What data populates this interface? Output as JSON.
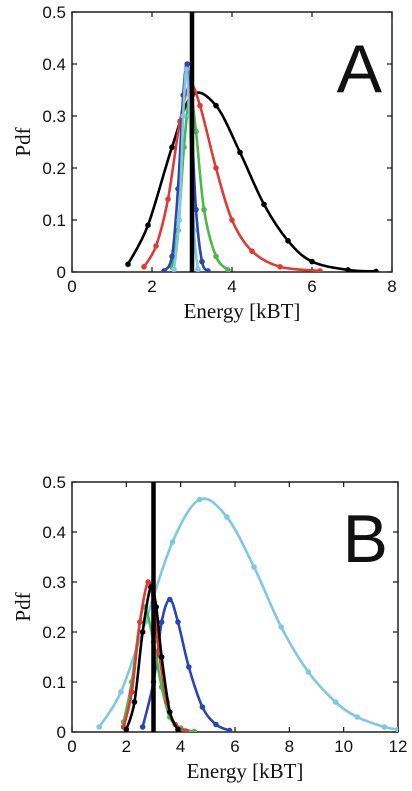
{
  "chart_data": [
    {
      "type": "line",
      "panel_label": "A",
      "xlabel": "Energy [kBT]",
      "ylabel": "Pdf",
      "xlim": [
        0,
        8
      ],
      "ylim": [
        0,
        0.5
      ],
      "xticks": [
        "0",
        "2",
        "4",
        "6",
        "8"
      ],
      "yticks": [
        "0",
        "0.1",
        "0.2",
        "0.3",
        "0.4",
        "0.5"
      ],
      "vertical_line_x": 3.0,
      "series": [
        {
          "color": "#000000",
          "x": [
            1.4,
            1.9,
            2.5,
            3.0,
            3.6,
            4.2,
            4.8,
            5.4,
            6.0,
            6.9,
            7.6
          ],
          "y": [
            0.015,
            0.09,
            0.24,
            0.34,
            0.32,
            0.23,
            0.13,
            0.06,
            0.02,
            0.004,
            0.001
          ]
        },
        {
          "color": "#e03a36",
          "x": [
            1.8,
            2.1,
            2.4,
            2.7,
            2.95,
            3.2,
            3.6,
            4.0,
            4.5,
            5.2,
            6.2
          ],
          "y": [
            0.01,
            0.05,
            0.14,
            0.29,
            0.36,
            0.32,
            0.2,
            0.1,
            0.04,
            0.01,
            0.002
          ]
        },
        {
          "color": "#4ab84a",
          "x": [
            2.5,
            2.65,
            2.8,
            2.95,
            3.1,
            3.3,
            3.6,
            3.9
          ],
          "y": [
            0.01,
            0.08,
            0.24,
            0.34,
            0.27,
            0.12,
            0.03,
            0.004
          ]
        },
        {
          "color": "#2a45b0",
          "x": [
            2.3,
            2.5,
            2.65,
            2.78,
            2.88,
            2.98,
            3.1,
            3.25,
            3.4
          ],
          "y": [
            0.002,
            0.03,
            0.16,
            0.34,
            0.4,
            0.3,
            0.12,
            0.02,
            0.002
          ]
        },
        {
          "color": "#7ec8e3",
          "x": [
            2.55,
            2.68,
            2.78,
            2.86,
            2.94,
            3.05,
            3.15
          ],
          "y": [
            0.005,
            0.1,
            0.3,
            0.39,
            0.3,
            0.08,
            0.005
          ]
        }
      ]
    },
    {
      "type": "line",
      "panel_label": "B",
      "xlabel": "Energy [kBT]",
      "ylabel": "Pdf",
      "xlim": [
        0,
        12
      ],
      "ylim": [
        0,
        0.5
      ],
      "xticks": [
        "0",
        "2",
        "4",
        "6",
        "8",
        "10",
        "12"
      ],
      "yticks": [
        "0",
        "0.1",
        "0.2",
        "0.3",
        "0.4",
        "0.5"
      ],
      "vertical_line_x": 3.0,
      "series": [
        {
          "color": "#7ec8e3",
          "x": [
            1.0,
            1.8,
            2.7,
            3.7,
            4.7,
            5.7,
            6.7,
            7.7,
            8.7,
            9.7,
            10.5,
            11.5,
            12.0
          ],
          "y": [
            0.01,
            0.08,
            0.22,
            0.38,
            0.465,
            0.43,
            0.33,
            0.21,
            0.12,
            0.06,
            0.03,
            0.01,
            0.005
          ]
        },
        {
          "color": "#2a45b0",
          "x": [
            2.6,
            3.0,
            3.3,
            3.6,
            3.9,
            4.3,
            4.8,
            5.3,
            5.8
          ],
          "y": [
            0.01,
            0.1,
            0.22,
            0.265,
            0.22,
            0.13,
            0.05,
            0.015,
            0.003
          ]
        },
        {
          "color": "#4ab84a",
          "x": [
            1.9,
            2.2,
            2.5,
            2.7,
            3.0,
            3.3,
            3.6,
            4.0,
            4.5
          ],
          "y": [
            0.02,
            0.1,
            0.22,
            0.25,
            0.18,
            0.09,
            0.03,
            0.008,
            0.001
          ]
        },
        {
          "color": "#e03a36",
          "x": [
            1.9,
            2.2,
            2.5,
            2.8,
            3.0,
            3.2,
            3.5,
            3.8,
            4.2
          ],
          "y": [
            0.01,
            0.08,
            0.22,
            0.3,
            0.26,
            0.16,
            0.06,
            0.015,
            0.002
          ]
        },
        {
          "color": "#000000",
          "x": [
            2.0,
            2.3,
            2.6,
            2.9,
            3.1,
            3.3,
            3.6,
            3.9
          ],
          "y": [
            0.005,
            0.06,
            0.2,
            0.29,
            0.25,
            0.15,
            0.04,
            0.005
          ]
        }
      ]
    }
  ]
}
